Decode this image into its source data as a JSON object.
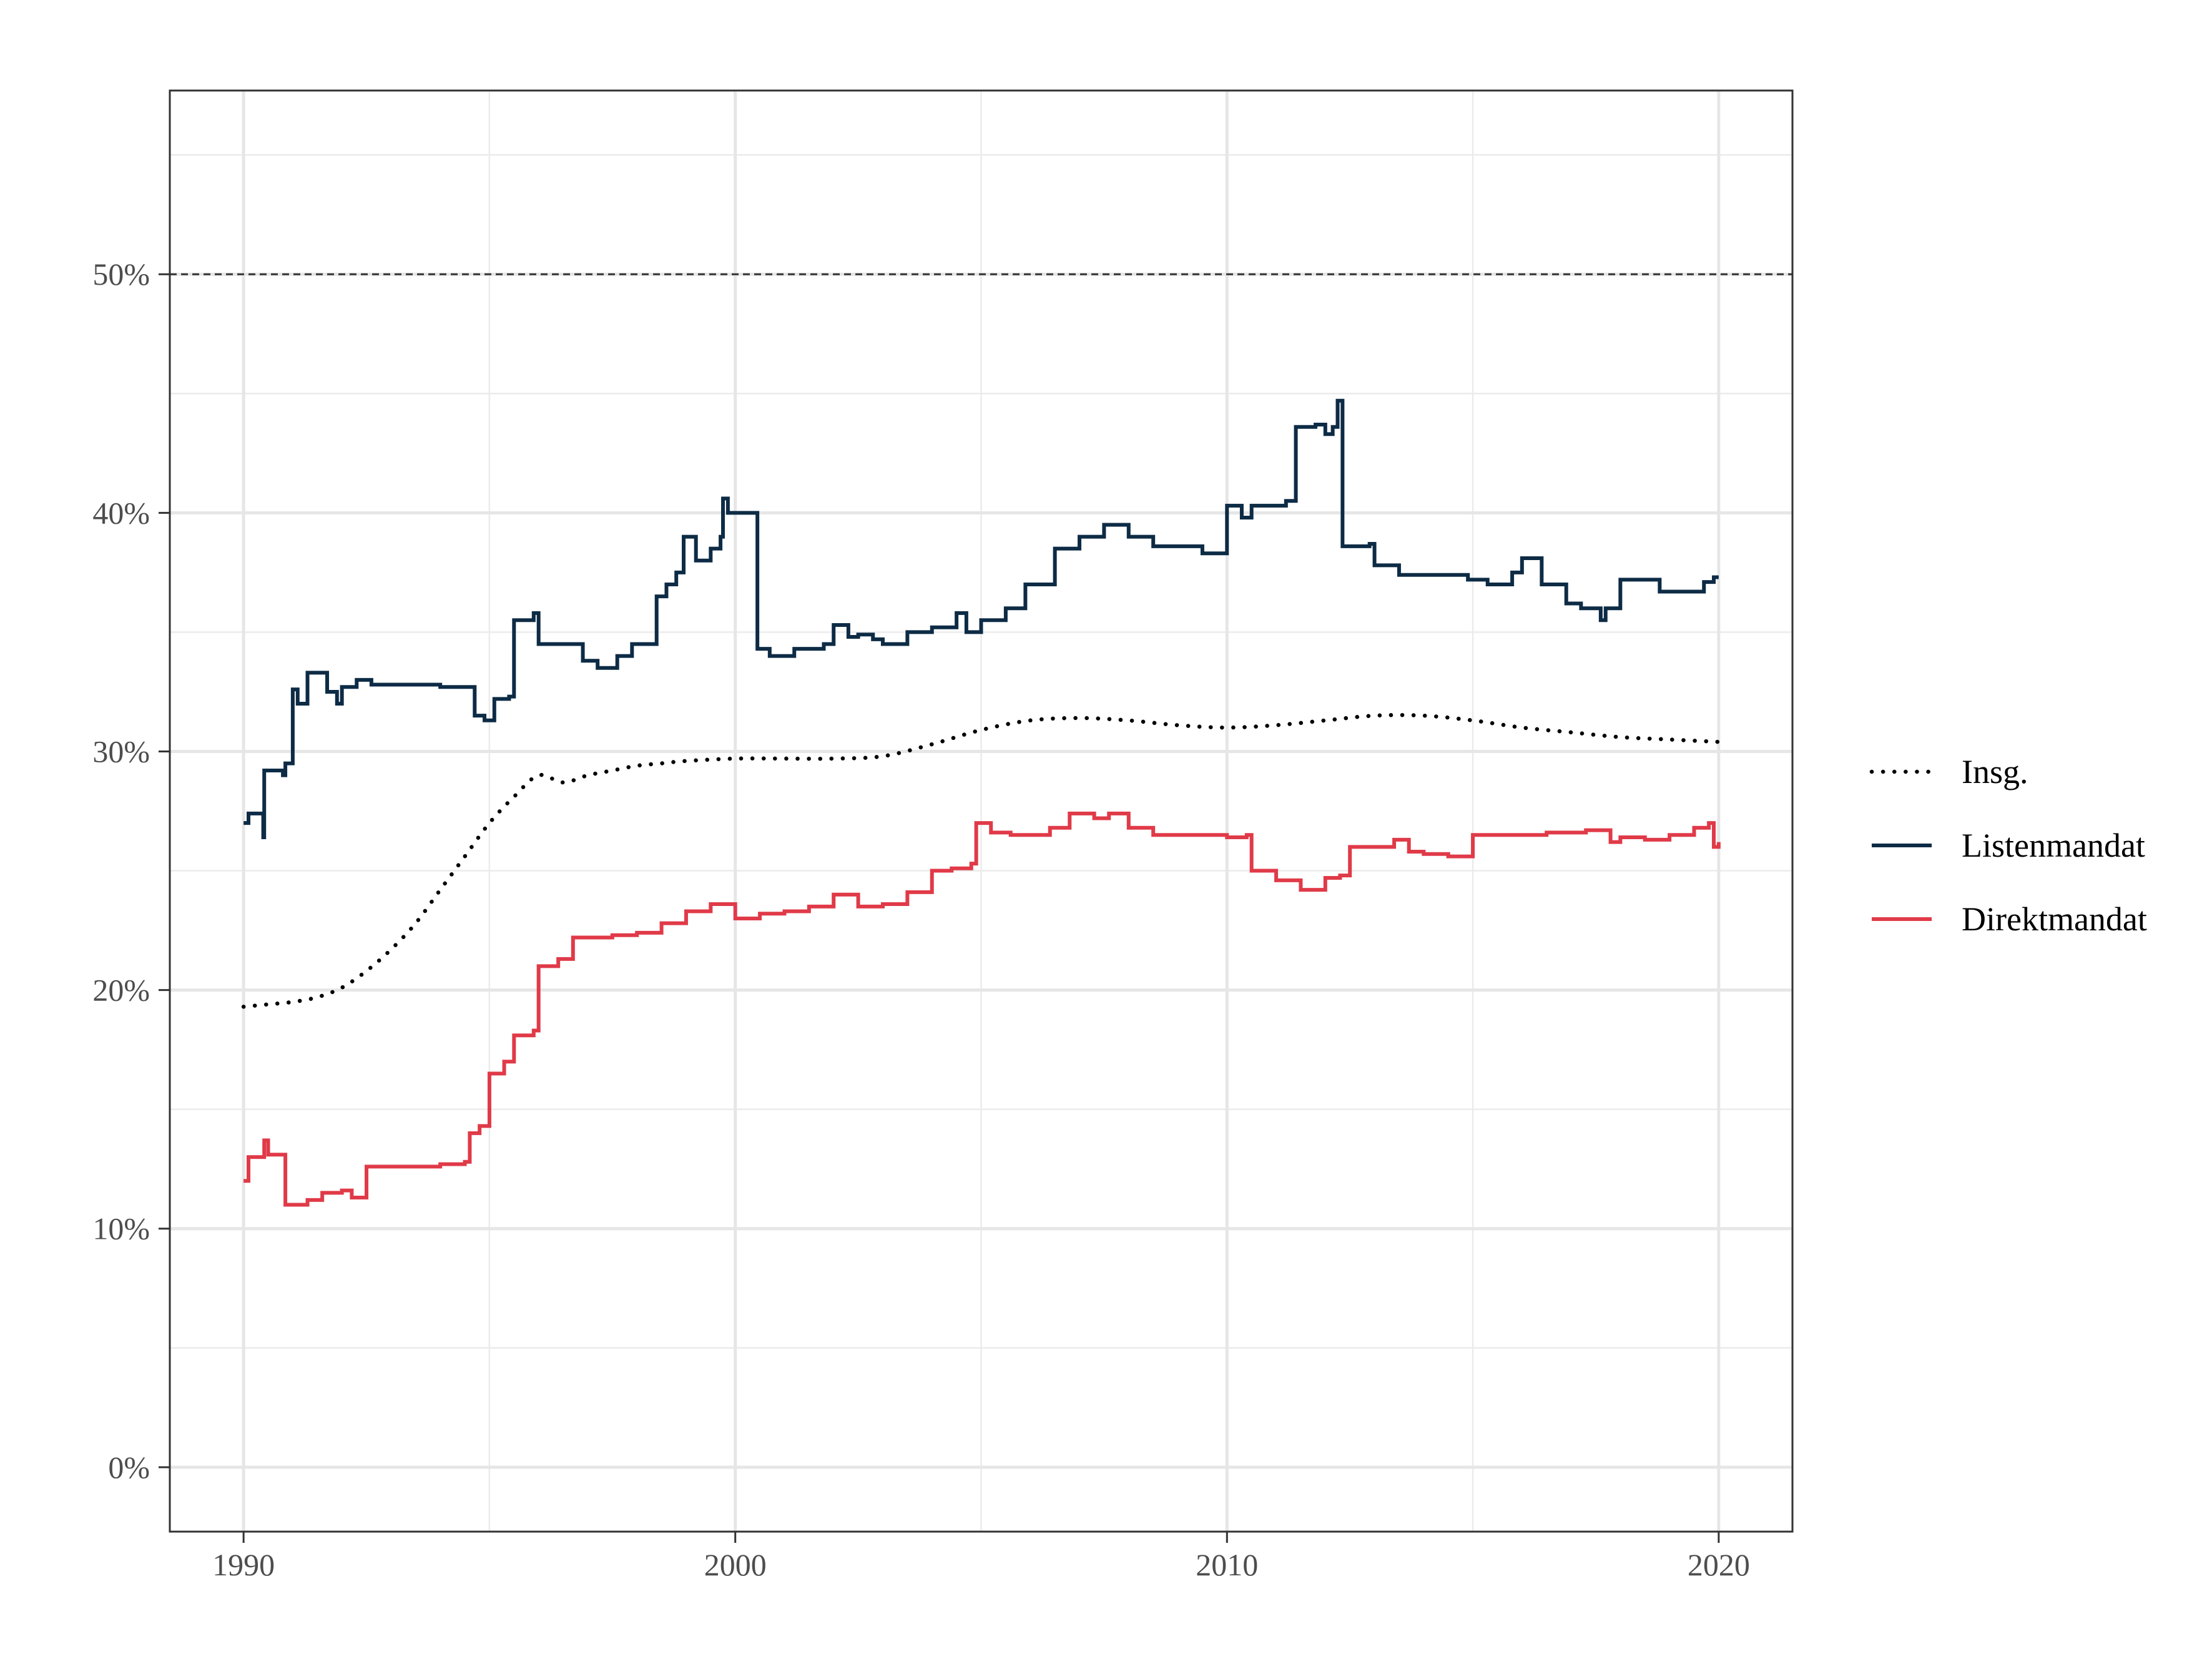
{
  "chart_data": {
    "type": "line",
    "title": "",
    "xlabel": "",
    "ylabel": "",
    "xlim": [
      1988.5,
      2021.5
    ],
    "ylim": [
      -0.027,
      0.577
    ],
    "x_ticks": [
      1990,
      2000,
      2010,
      2020
    ],
    "x_tick_labels": [
      "1990",
      "2000",
      "2010",
      "2020"
    ],
    "y_ticks": [
      0,
      0.1,
      0.2,
      0.3,
      0.4,
      0.5
    ],
    "y_tick_labels": [
      "0%",
      "10%",
      "20%",
      "30%",
      "40%",
      "50%"
    ],
    "grid": true,
    "reference_line": {
      "y": 0.5,
      "style": "dashed",
      "color": "#333333"
    },
    "legend_position": "right",
    "series": [
      {
        "name": "Insg.",
        "style": "dotted",
        "color": "#000000",
        "x": [
          1990,
          1990.5,
          1991,
          1991.5,
          1992,
          1992.5,
          1993,
          1993.5,
          1994,
          1994.5,
          1995,
          1995.5,
          1996,
          1996.5,
          1997,
          1997.5,
          1998,
          1998.5,
          1999,
          2000,
          2001,
          2002,
          2003,
          2004,
          2005,
          2006,
          2007,
          2008,
          2009,
          2010,
          2011,
          2012,
          2013,
          2014,
          2015,
          2016,
          2017,
          2018,
          2019,
          2020
        ],
        "y": [
          0.193,
          0.194,
          0.195,
          0.197,
          0.201,
          0.208,
          0.217,
          0.228,
          0.242,
          0.256,
          0.27,
          0.281,
          0.29,
          0.287,
          0.29,
          0.292,
          0.294,
          0.295,
          0.296,
          0.297,
          0.297,
          0.297,
          0.298,
          0.303,
          0.309,
          0.313,
          0.314,
          0.313,
          0.311,
          0.31,
          0.311,
          0.313,
          0.315,
          0.315,
          0.313,
          0.31,
          0.308,
          0.306,
          0.305,
          0.304
        ]
      },
      {
        "name": "Listenmandat",
        "style": "solid",
        "color": "#0d2b45",
        "x": [
          1990,
          1990.1,
          1990.2,
          1990.4,
          1990.42,
          1990.45,
          1990.8,
          1990.85,
          1991.0,
          1991.1,
          1991.3,
          1991.6,
          1991.7,
          1991.9,
          1992.0,
          1992.3,
          1992.6,
          1993.5,
          1994.0,
          1994.5,
          1994.7,
          1994.9,
          1995.1,
          1995.4,
          1995.5,
          1995.9,
          1996.0,
          1996.6,
          1996.9,
          1997.2,
          1997.6,
          1997.9,
          1998.2,
          1998.4,
          1998.6,
          1998.8,
          1998.95,
          1999.2,
          1999.5,
          1999.7,
          1999.75,
          1999.85,
          2000.4,
          2000.45,
          2000.7,
          2001.2,
          2001.8,
          2002.0,
          2002.3,
          2002.5,
          2002.8,
          2003.0,
          2003.5,
          2004.0,
          2004.5,
          2004.7,
          2005.0,
          2005.5,
          2005.9,
          2006.5,
          2007.0,
          2007.5,
          2008.0,
          2008.5,
          2009.5,
          2009.7,
          2010.0,
          2010.3,
          2010.5,
          2011.2,
          2011.4,
          2011.8,
          2012.0,
          2012.15,
          2012.25,
          2012.35,
          2012.9,
          2013.0,
          2013.5,
          2014.5,
          2014.9,
          2015.3,
          2015.8,
          2016.0,
          2016.4,
          2016.9,
          2017.2,
          2017.6,
          2017.7,
          2018.0,
          2018.8,
          2019.5,
          2019.7,
          2019.9,
          2020.0
        ],
        "y": [
          0.27,
          0.274,
          0.274,
          0.264,
          0.292,
          0.292,
          0.29,
          0.295,
          0.326,
          0.32,
          0.333,
          0.333,
          0.325,
          0.32,
          0.327,
          0.33,
          0.328,
          0.328,
          0.327,
          0.327,
          0.315,
          0.313,
          0.322,
          0.323,
          0.355,
          0.358,
          0.345,
          0.345,
          0.338,
          0.335,
          0.34,
          0.345,
          0.345,
          0.365,
          0.37,
          0.375,
          0.39,
          0.38,
          0.385,
          0.39,
          0.406,
          0.4,
          0.4,
          0.343,
          0.34,
          0.343,
          0.345,
          0.353,
          0.348,
          0.349,
          0.347,
          0.345,
          0.35,
          0.352,
          0.358,
          0.35,
          0.355,
          0.36,
          0.37,
          0.385,
          0.39,
          0.395,
          0.39,
          0.386,
          0.383,
          0.383,
          0.403,
          0.398,
          0.403,
          0.405,
          0.436,
          0.437,
          0.433,
          0.436,
          0.447,
          0.386,
          0.387,
          0.378,
          0.374,
          0.374,
          0.372,
          0.37,
          0.375,
          0.381,
          0.37,
          0.362,
          0.36,
          0.355,
          0.36,
          0.372,
          0.367,
          0.367,
          0.371,
          0.373,
          0.373
        ]
      },
      {
        "name": "Direktmandat",
        "style": "solid",
        "color": "#e03a48",
        "x": [
          1990,
          1990.1,
          1990.3,
          1990.42,
          1990.5,
          1990.8,
          1990.85,
          1991.3,
          1991.6,
          1992.0,
          1992.2,
          1992.5,
          1993.0,
          1993.5,
          1994.0,
          1994.5,
          1994.6,
          1994.8,
          1995.0,
          1995.3,
          1995.5,
          1995.9,
          1996.0,
          1996.4,
          1996.7,
          1997.0,
          1997.5,
          1998.0,
          1998.5,
          1999.0,
          1999.5,
          2000.0,
          2000.5,
          2001.0,
          2001.5,
          2002.0,
          2002.5,
          2003.0,
          2003.5,
          2004.0,
          2004.4,
          2004.8,
          2004.9,
          2005.2,
          2005.6,
          2006.0,
          2006.4,
          2006.8,
          2007.3,
          2007.6,
          2008.0,
          2008.5,
          2009.0,
          2009.5,
          2010.0,
          2010.4,
          2010.5,
          2011.0,
          2011.5,
          2012.0,
          2012.3,
          2012.5,
          2013.0,
          2013.4,
          2013.7,
          2014.0,
          2014.5,
          2014.9,
          2015.0,
          2015.5,
          2016.0,
          2016.5,
          2017.0,
          2017.3,
          2017.8,
          2018.0,
          2018.5,
          2019.0,
          2019.5,
          2019.7,
          2019.8,
          2019.9,
          2020.0
        ],
        "y": [
          0.12,
          0.13,
          0.13,
          0.137,
          0.131,
          0.131,
          0.11,
          0.112,
          0.115,
          0.116,
          0.113,
          0.126,
          0.126,
          0.126,
          0.127,
          0.128,
          0.14,
          0.143,
          0.165,
          0.17,
          0.181,
          0.183,
          0.21,
          0.213,
          0.222,
          0.222,
          0.223,
          0.224,
          0.228,
          0.233,
          0.236,
          0.23,
          0.232,
          0.233,
          0.235,
          0.24,
          0.235,
          0.236,
          0.241,
          0.25,
          0.251,
          0.253,
          0.27,
          0.266,
          0.265,
          0.265,
          0.268,
          0.274,
          0.272,
          0.274,
          0.268,
          0.265,
          0.265,
          0.265,
          0.264,
          0.265,
          0.25,
          0.246,
          0.242,
          0.247,
          0.248,
          0.26,
          0.26,
          0.263,
          0.258,
          0.257,
          0.256,
          0.256,
          0.265,
          0.265,
          0.265,
          0.266,
          0.266,
          0.267,
          0.262,
          0.264,
          0.263,
          0.265,
          0.268,
          0.268,
          0.27,
          0.26,
          0.262
        ]
      }
    ]
  }
}
